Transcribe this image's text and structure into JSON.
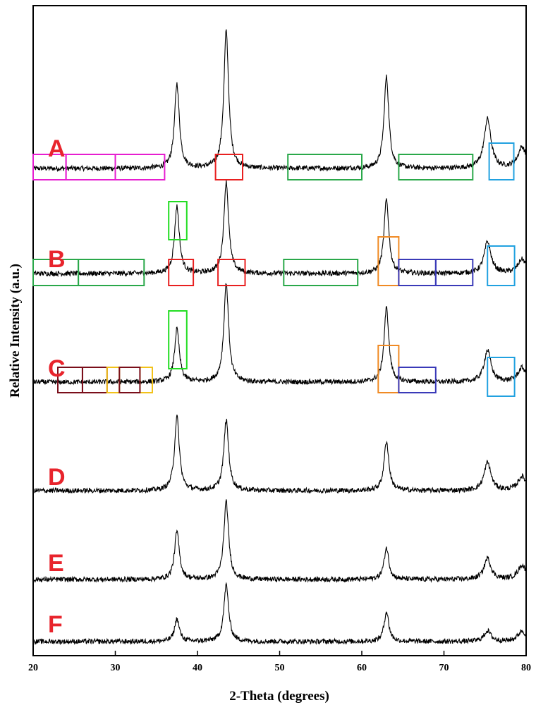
{
  "chart_data": {
    "type": "line",
    "xlabel": "2-Theta (degrees)",
    "ylabel": "Relative Intensity (a.u.)",
    "xlim": [
      20,
      80
    ],
    "xticks": [
      "20",
      "30",
      "40",
      "50",
      "60",
      "70",
      "80"
    ],
    "grid": false,
    "legend": "none",
    "peaks": [
      {
        "x": 37.5,
        "width": 0.35
      },
      {
        "x": 43.5,
        "width": 0.35
      },
      {
        "x": 63.0,
        "width": 0.35
      },
      {
        "x": 75.3,
        "width": 0.5
      },
      {
        "x": 79.5,
        "width": 0.6
      }
    ],
    "series": [
      {
        "name": "A",
        "peak_heights": [
          120,
          195,
          130,
          70,
          30
        ],
        "color": "#000000"
      },
      {
        "name": "B",
        "peak_heights": [
          95,
          130,
          105,
          45,
          20
        ],
        "color": "#000000"
      },
      {
        "name": "C",
        "peak_heights": [
          75,
          140,
          105,
          45,
          20
        ],
        "color": "#000000"
      },
      {
        "name": "D",
        "peak_heights": [
          105,
          100,
          70,
          40,
          20
        ],
        "color": "#000000"
      },
      {
        "name": "E",
        "peak_heights": [
          68,
          110,
          45,
          30,
          20
        ],
        "color": "#000000"
      },
      {
        "name": "F",
        "peak_heights": [
          32,
          80,
          42,
          15,
          15
        ],
        "color": "#000000"
      }
    ],
    "annotations": [
      {
        "series": "A",
        "color": "#e61ed0",
        "x_ranges": [
          [
            20,
            24
          ],
          [
            24,
            30
          ],
          [
            30,
            36
          ]
        ]
      },
      {
        "series": "A",
        "color": "#e82020",
        "x_ranges": [
          [
            42.2,
            45.5
          ]
        ]
      },
      {
        "series": "A",
        "color": "#2aa84a",
        "x_ranges": [
          [
            51,
            60
          ],
          [
            64.5,
            73.5
          ]
        ]
      },
      {
        "series": "A",
        "color": "#21a1e0",
        "x_ranges": [
          [
            75.5,
            78.5
          ]
        ]
      },
      {
        "series": "B",
        "color": "#2aa84a",
        "x_ranges": [
          [
            20,
            25.5
          ],
          [
            25.5,
            33.5
          ],
          [
            50.5,
            59.5
          ]
        ]
      },
      {
        "series": "B",
        "color": "#22dd22",
        "x_ranges": [
          [
            36.5,
            38.7
          ]
        ]
      },
      {
        "series": "B",
        "color": "#e82020",
        "x_ranges": [
          [
            36.5,
            39.5
          ],
          [
            42.5,
            45.8
          ]
        ]
      },
      {
        "series": "B",
        "color": "#f08a24",
        "x_ranges": [
          [
            62,
            64.5
          ]
        ]
      },
      {
        "series": "B",
        "color": "#3a3ab8",
        "x_ranges": [
          [
            64.5,
            69
          ],
          [
            69,
            73.5
          ]
        ]
      },
      {
        "series": "B",
        "color": "#21a1e0",
        "x_ranges": [
          [
            75.3,
            78.6
          ]
        ]
      },
      {
        "series": "C",
        "color": "#7a0e1a",
        "x_ranges": [
          [
            23,
            26
          ],
          [
            26,
            29
          ]
        ]
      },
      {
        "series": "C",
        "color": "#f2c21a",
        "x_ranges": [
          [
            29,
            30.5
          ],
          [
            33,
            34.5
          ]
        ]
      },
      {
        "series": "C",
        "color": "#7a0e1a",
        "x_ranges": [
          [
            30.5,
            33
          ]
        ]
      },
      {
        "series": "C",
        "color": "#22dd22",
        "x_ranges": [
          [
            36.5,
            38.7
          ]
        ]
      },
      {
        "series": "C",
        "color": "#f08a24",
        "x_ranges": [
          [
            62,
            64.5
          ]
        ]
      },
      {
        "series": "C",
        "color": "#3a3ab8",
        "x_ranges": [
          [
            64.5,
            69
          ]
        ]
      },
      {
        "series": "C",
        "color": "#21a1e0",
        "x_ranges": [
          [
            75.3,
            78.6
          ]
        ]
      }
    ]
  }
}
